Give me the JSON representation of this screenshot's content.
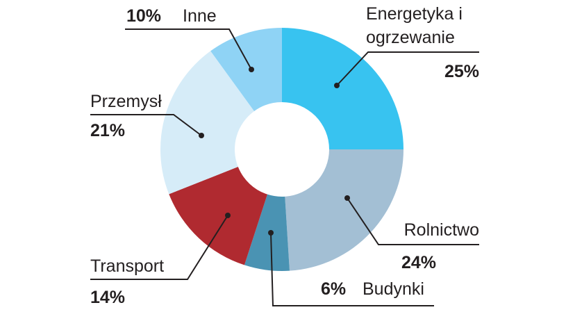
{
  "chart_data": {
    "type": "donut",
    "categories": [
      "Energetyka i ogrzewanie",
      "Rolnictwo",
      "Budynki",
      "Transport",
      "Przemysł",
      "Inne"
    ],
    "values": [
      25,
      24,
      6,
      14,
      21,
      10
    ],
    "value_labels": [
      "25%",
      "24%",
      "6%",
      "14%",
      "21%",
      "10%"
    ],
    "colors": [
      "#38c3f0",
      "#a3bfd4",
      "#4a93b3",
      "#b02a30",
      "#d6ecf8",
      "#8fd3f5"
    ]
  }
}
